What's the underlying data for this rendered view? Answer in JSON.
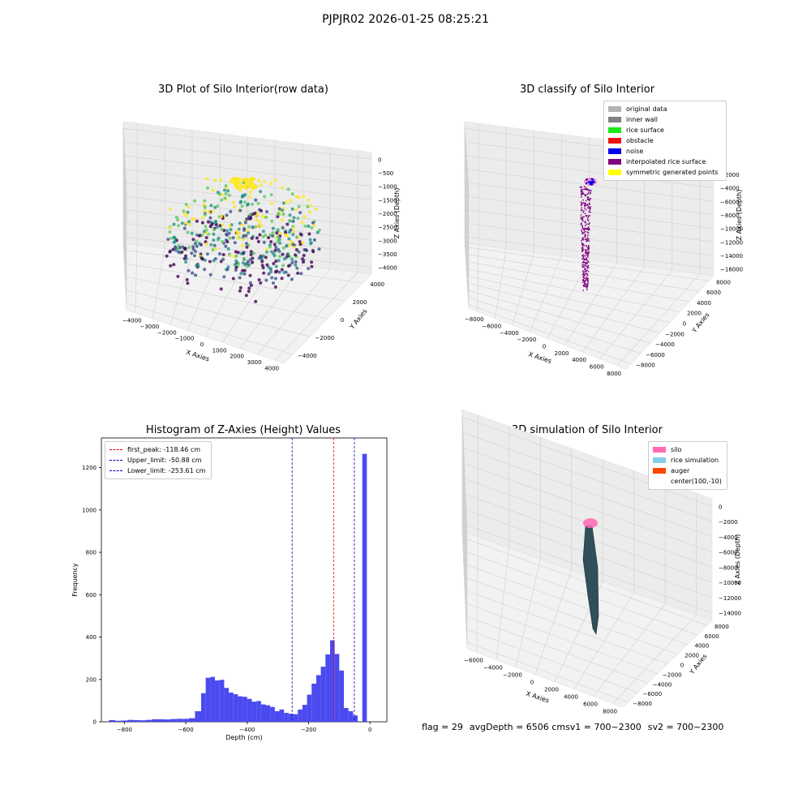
{
  "suptitle": "PJPJR02 2026-01-25 08:25:21",
  "panels": {
    "raw": {
      "title": "3D Plot of Silo Interior(row data)",
      "xlabel": "X Axies",
      "ylabel": "Y Axies",
      "zlabel": "Z Axies (Depth)",
      "xticks": [
        "−4000",
        "−3000",
        "−2000",
        "−1000",
        "0",
        "1000",
        "2000",
        "3000",
        "4000"
      ],
      "yticks": [
        "−4000",
        "−2000",
        "0",
        "2000",
        "4000"
      ],
      "zticks": [
        "0",
        "−500",
        "−1000",
        "−1500",
        "−2000",
        "−2500",
        "−3000",
        "−3500",
        "−4000"
      ],
      "colormap": [
        "#440154",
        "#3b528b",
        "#21918c",
        "#5ec962",
        "#fde725"
      ]
    },
    "classify": {
      "title": "3D classify of Silo Interior",
      "xlabel": "X Axies",
      "ylabel": "Y Axies",
      "zlabel": "Z Axies (Depth)",
      "xticks": [
        "−8000",
        "−6000",
        "−4000",
        "−2000",
        "0",
        "2000",
        "4000",
        "6000",
        "8000"
      ],
      "yticks": [
        "−8000",
        "−6000",
        "−4000",
        "−2000",
        "0",
        "2000",
        "4000",
        "6000",
        "8000"
      ],
      "zticks": [
        "0",
        "2000",
        "4000",
        "6000",
        "8000",
        "10000",
        "12000",
        "14000",
        "16000"
      ],
      "zticks_prefix": [
        "",
        "−",
        "−",
        "−",
        "−",
        "−",
        "−",
        "−",
        "−"
      ],
      "legend": [
        {
          "label": "original data",
          "color": "#b3b3b3"
        },
        {
          "label": "inner wall",
          "color": "#808080"
        },
        {
          "label": "rice surface",
          "color": "#17e817"
        },
        {
          "label": "obstacle",
          "color": "#ee1111"
        },
        {
          "label": "noise",
          "color": "#0000ee"
        },
        {
          "label": "interpolated rice surface",
          "color": "#800080"
        },
        {
          "label": "symmetric generated points",
          "color": "#ffff00"
        }
      ]
    },
    "simulation": {
      "title": "3D simulation of Silo Interior",
      "xlabel": "X Axies",
      "ylabel": "Y Axies",
      "zlabel": "Z Axies (Depth)",
      "xticks": [
        "−6000",
        "−4000",
        "−2000",
        "0",
        "2000",
        "4000",
        "6000",
        "8000"
      ],
      "yticks": [
        "−8000",
        "−6000",
        "−4000",
        "−2000",
        "0",
        "2000",
        "4000",
        "6000",
        "8000"
      ],
      "zticks": [
        "0",
        "−2000",
        "−4000",
        "−6000",
        "−8000",
        "−10000",
        "−12000",
        "−14000"
      ],
      "legend": [
        {
          "label": "silo",
          "color": "#ff69b4"
        },
        {
          "label": "rice simulation",
          "color": "#87ceeb"
        },
        {
          "label": "auger",
          "color": "#ff4500"
        },
        {
          "label": "center(100,-10)",
          "color": "#ffffff"
        }
      ]
    }
  },
  "chart_data": {
    "type": "bar",
    "title": "Histogram of Z-Axies (Height) Values",
    "xlabel": "Depth (cm)",
    "ylabel": "Frequency",
    "xlim": [
      -875,
      55
    ],
    "ylim": [
      0,
      1340
    ],
    "xticks": [
      -800,
      -600,
      -400,
      -200,
      0
    ],
    "xtick_labels": [
      "−800",
      "−600",
      "−400",
      "−200",
      "0"
    ],
    "yticks": [
      0,
      200,
      400,
      600,
      800,
      1000,
      1200
    ],
    "bar_color": "#4a4af0",
    "bins": [
      [
        -850,
        -830,
        8
      ],
      [
        -830,
        -810,
        5
      ],
      [
        -810,
        -790,
        6
      ],
      [
        -790,
        -770,
        9
      ],
      [
        -770,
        -750,
        8
      ],
      [
        -750,
        -730,
        7
      ],
      [
        -730,
        -710,
        9
      ],
      [
        -710,
        -690,
        12
      ],
      [
        -690,
        -670,
        12
      ],
      [
        -670,
        -650,
        11
      ],
      [
        -650,
        -630,
        13
      ],
      [
        -630,
        -610,
        14
      ],
      [
        -610,
        -590,
        14
      ],
      [
        -590,
        -570,
        17
      ],
      [
        -570,
        -550,
        50
      ],
      [
        -550,
        -535,
        135
      ],
      [
        -535,
        -520,
        208
      ],
      [
        -520,
        -505,
        212
      ],
      [
        -505,
        -490,
        195
      ],
      [
        -490,
        -475,
        198
      ],
      [
        -475,
        -460,
        160
      ],
      [
        -460,
        -445,
        138
      ],
      [
        -445,
        -430,
        130
      ],
      [
        -430,
        -415,
        120
      ],
      [
        -415,
        -400,
        118
      ],
      [
        -400,
        -385,
        108
      ],
      [
        -385,
        -370,
        95
      ],
      [
        -370,
        -355,
        98
      ],
      [
        -355,
        -340,
        82
      ],
      [
        -340,
        -325,
        78
      ],
      [
        -325,
        -310,
        70
      ],
      [
        -310,
        -295,
        50
      ],
      [
        -295,
        -280,
        58
      ],
      [
        -280,
        -265,
        42
      ],
      [
        -265,
        -250,
        38
      ],
      [
        -250,
        -235,
        36
      ],
      [
        -235,
        -220,
        58
      ],
      [
        -220,
        -205,
        80
      ],
      [
        -205,
        -190,
        128
      ],
      [
        -190,
        -175,
        180
      ],
      [
        -175,
        -160,
        220
      ],
      [
        -160,
        -145,
        260
      ],
      [
        -145,
        -130,
        318
      ],
      [
        -130,
        -115,
        385
      ],
      [
        -115,
        -100,
        320
      ],
      [
        -100,
        -85,
        242
      ],
      [
        -85,
        -70,
        65
      ],
      [
        -70,
        -55,
        50
      ],
      [
        -55,
        -40,
        30
      ],
      [
        -40,
        -25,
        0
      ],
      [
        -25,
        -10,
        1265
      ],
      [
        -10,
        0,
        0
      ]
    ],
    "lines": [
      {
        "name": "first_peak: -118.46 cm",
        "x": -118.46,
        "color": "#ee0000"
      },
      {
        "name": "Upper_limit: -50.88 cm",
        "x": -50.88,
        "color": "#0000cc"
      },
      {
        "name": "Lower_limit: -253.61 cm",
        "x": -253.61,
        "color": "#0000cc"
      }
    ]
  },
  "footer": {
    "flag": "flag = 29",
    "avg": "avgDepth = 6506 cm",
    "sv1": "sv1 = 700~2300",
    "sv2": "sv2 = 700~2300"
  }
}
